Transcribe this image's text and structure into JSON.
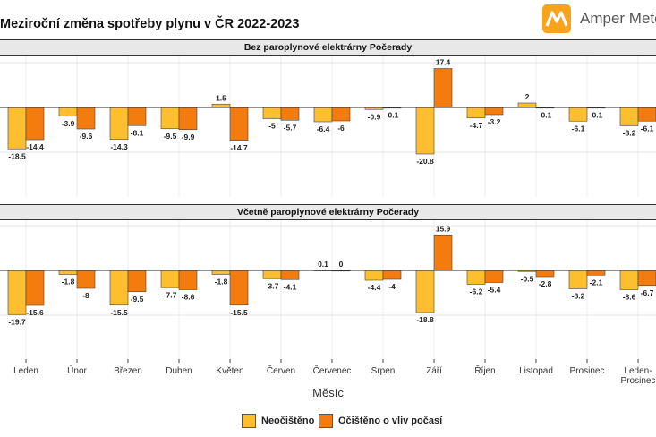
{
  "title": "Meziroční změna spotřeby plynu v ČR 2022-2023",
  "brand": {
    "name": "Amper Meter",
    "icon": "amper-meter-logo-icon",
    "color": "#f7a31c"
  },
  "chart_data": {
    "type": "bar",
    "xlabel": "Měsíc",
    "categories": [
      "Leden",
      "Únor",
      "Březen",
      "Duben",
      "Květen",
      "Červen",
      "Červenec",
      "Srpen",
      "Září",
      "Říjen",
      "Listopad",
      "Prosinec",
      "Leden-Prosinec"
    ],
    "panels": [
      {
        "title": "Bez paroplynové elektrárny Počerady",
        "series": [
          {
            "name": "Neočištěno",
            "color": "#fdbf2d",
            "values": [
              -18.5,
              -3.9,
              -14.3,
              -9.5,
              1.5,
              -5,
              -6.4,
              -0.9,
              -20.8,
              -4.7,
              2,
              -6.1,
              -8.2
            ]
          },
          {
            "name": "Očištěno o vliv počasí",
            "color": "#f47c0f",
            "values": [
              -14.4,
              -9.6,
              -8.1,
              -9.9,
              -14.7,
              -5.7,
              -6,
              -0.1,
              17.4,
              -3.2,
              -0.1,
              -0.1,
              -6.1
            ]
          }
        ]
      },
      {
        "title": "Včetně paroplynové elektrárny Počerady",
        "series": [
          {
            "name": "Neočištěno",
            "color": "#fdbf2d",
            "values": [
              -19.7,
              -1.8,
              -15.5,
              -7.7,
              -1.8,
              -3.7,
              0.1,
              -4.4,
              -18.8,
              -6.2,
              -0.5,
              -8.2,
              -8.6
            ]
          },
          {
            "name": "Očištěno o vliv počasí",
            "color": "#f47c0f",
            "values": [
              -15.6,
              -8,
              -9.5,
              -8.6,
              -15.5,
              -4.1,
              0,
              -4,
              15.9,
              -5.4,
              -2.8,
              -2.1,
              -6.7
            ]
          }
        ]
      }
    ],
    "legend_position": "bottom",
    "grid": true
  }
}
